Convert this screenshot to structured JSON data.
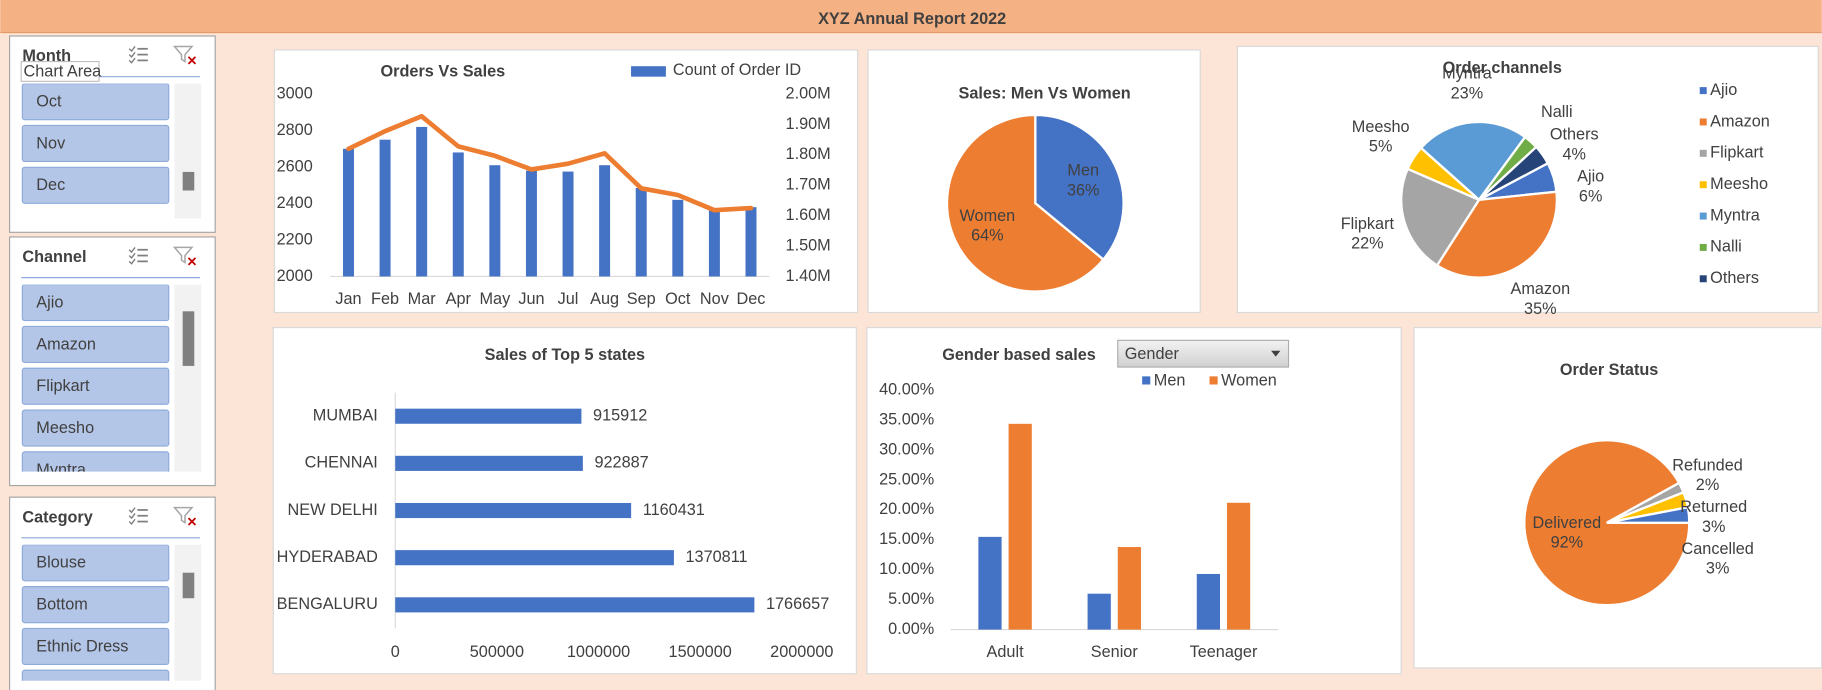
{
  "header": {
    "title": "XYZ Annual Report 2022"
  },
  "slicers": [
    {
      "title": "Month",
      "items": [
        "Oct",
        "Nov",
        "Dec"
      ],
      "tooltip": "Chart Area"
    },
    {
      "title": "Channel",
      "items": [
        "Ajio",
        "Amazon",
        "Flipkart",
        "Meesho",
        "Myntra"
      ]
    },
    {
      "title": "Category",
      "items": [
        "Blouse",
        "Bottom",
        "Ethnic Dress"
      ]
    }
  ],
  "chart_data": [
    {
      "type": "combo",
      "title": "Orders Vs Sales",
      "categories": [
        "Jan",
        "Feb",
        "Mar",
        "Apr",
        "May",
        "Jun",
        "Jul",
        "Aug",
        "Sep",
        "Oct",
        "Nov",
        "Dec"
      ],
      "series": [
        {
          "name": "Count of Order ID",
          "type": "bar",
          "color": "#4472c4",
          "values": [
            2700,
            2750,
            2820,
            2680,
            2610,
            2580,
            2575,
            2610,
            2485,
            2420,
            2375,
            2380
          ]
        },
        {
          "type": "line",
          "axis": "y2",
          "color": "#ed7d31",
          "values": [
            1820000,
            1878000,
            1927000,
            1828000,
            1797000,
            1752000,
            1771000,
            1805000,
            1690000,
            1668000,
            1618000,
            1625000
          ]
        }
      ],
      "ylim": [
        2000,
        3000
      ],
      "yticks": [
        2000,
        2200,
        2400,
        2600,
        2800,
        3000
      ],
      "y2lim": [
        1400000,
        2000000
      ],
      "y2ticks": [
        {
          "value": 1400000,
          "label": "1.40M"
        },
        {
          "value": 1500000,
          "label": "1.50M"
        },
        {
          "value": 1600000,
          "label": "1.60M"
        },
        {
          "value": 1700000,
          "label": "1.70M"
        },
        {
          "value": 1800000,
          "label": "1.80M"
        },
        {
          "value": 1900000,
          "label": "1.90M"
        },
        {
          "value": 2000000,
          "label": "2.00M"
        }
      ],
      "grid": false,
      "legend": "top-right"
    },
    {
      "type": "pie",
      "title": "Sales: Men Vs Women",
      "categories": [
        "Men",
        "Women"
      ],
      "values": [
        36,
        64
      ],
      "value_labels": [
        "36%",
        "64%"
      ],
      "colors": [
        "#4472c4",
        "#ed7d31"
      ],
      "data_labels": "inside"
    },
    {
      "type": "pie",
      "title": "Order channels",
      "categories": [
        "Ajio",
        "Amazon",
        "Flipkart",
        "Meesho",
        "Myntra",
        "Nalli",
        "Others"
      ],
      "values": [
        6,
        35,
        22,
        5,
        23,
        3,
        4
      ],
      "value_labels": [
        "6%",
        "35%",
        "22%",
        "5%",
        "23%",
        null,
        "4%"
      ],
      "colors": [
        "#4472c4",
        "#ed7d31",
        "#a5a5a5",
        "#ffc000",
        "#5b9bd5",
        "#70ad47",
        "#264478"
      ],
      "data_labels": "outside",
      "legend": "right"
    },
    {
      "type": "hbar",
      "title": "Sales of Top 5 states",
      "categories": [
        "MUMBAI",
        "CHENNAI",
        "NEW DELHI",
        "HYDERABAD",
        "BENGALURU"
      ],
      "values": [
        915912,
        922887,
        1160431,
        1370811,
        1766657
      ],
      "color": "#4472c4",
      "xlim": [
        0,
        2000000
      ],
      "xticks": [
        0,
        500000,
        1000000,
        1500000,
        2000000
      ],
      "grid": false,
      "data_labels": true
    },
    {
      "type": "bar",
      "title": "Gender based sales",
      "filter": "Gender",
      "categories": [
        "Adult",
        "Senior",
        "Teenager"
      ],
      "series": [
        {
          "name": "Men",
          "color": "#4472c4",
          "values": [
            15.5,
            6.0,
            9.3
          ]
        },
        {
          "name": "Women",
          "color": "#ed7d31",
          "values": [
            34.4,
            13.8,
            21.2
          ]
        }
      ],
      "ylim": [
        0,
        40
      ],
      "yticks": [
        {
          "value": 0,
          "label": "0.00%"
        },
        {
          "value": 5,
          "label": "5.00%"
        },
        {
          "value": 10,
          "label": "10.00%"
        },
        {
          "value": 15,
          "label": "15.00%"
        },
        {
          "value": 20,
          "label": "20.00%"
        },
        {
          "value": 25,
          "label": "25.00%"
        },
        {
          "value": 30,
          "label": "30.00%"
        },
        {
          "value": 35,
          "label": "35.00%"
        },
        {
          "value": 40,
          "label": "40.00%"
        }
      ],
      "grid": false,
      "legend": "top-right"
    },
    {
      "type": "pie",
      "title": "Order Status",
      "categories": [
        "Delivered",
        "Refunded",
        "Returned",
        "Cancelled"
      ],
      "values": [
        92,
        2,
        3,
        3
      ],
      "value_labels": [
        "92%",
        "2%",
        "3%",
        "3%"
      ],
      "colors": [
        "#ed7d31",
        "#a5a5a5",
        "#ffc000",
        "#4472c4"
      ],
      "data_labels": "best_fit"
    }
  ]
}
